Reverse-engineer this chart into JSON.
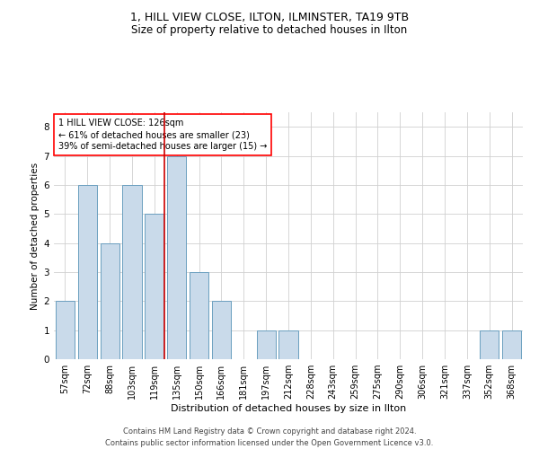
{
  "title1": "1, HILL VIEW CLOSE, ILTON, ILMINSTER, TA19 9TB",
  "title2": "Size of property relative to detached houses in Ilton",
  "xlabel": "Distribution of detached houses by size in Ilton",
  "ylabel": "Number of detached properties",
  "footer1": "Contains HM Land Registry data © Crown copyright and database right 2024.",
  "footer2": "Contains public sector information licensed under the Open Government Licence v3.0.",
  "annotation_line1": "1 HILL VIEW CLOSE: 126sqm",
  "annotation_line2": "← 61% of detached houses are smaller (23)",
  "annotation_line3": "39% of semi-detached houses are larger (15) →",
  "bar_labels": [
    "57sqm",
    "72sqm",
    "88sqm",
    "103sqm",
    "119sqm",
    "135sqm",
    "150sqm",
    "166sqm",
    "181sqm",
    "197sqm",
    "212sqm",
    "228sqm",
    "243sqm",
    "259sqm",
    "275sqm",
    "290sqm",
    "306sqm",
    "321sqm",
    "337sqm",
    "352sqm",
    "368sqm"
  ],
  "bar_values": [
    2,
    6,
    4,
    6,
    5,
    7,
    3,
    2,
    0,
    1,
    1,
    0,
    0,
    0,
    0,
    0,
    0,
    0,
    0,
    1,
    1
  ],
  "bar_color": "#c9daea",
  "bar_edge_color": "#6a9fbf",
  "grid_color": "#d0d0d0",
  "ylim": [
    0,
    8.5
  ],
  "yticks": [
    0,
    1,
    2,
    3,
    4,
    5,
    6,
    7,
    8
  ],
  "title1_fontsize": 9,
  "title2_fontsize": 8.5,
  "xlabel_fontsize": 8,
  "ylabel_fontsize": 7.5,
  "tick_fontsize": 7,
  "annotation_fontsize": 7,
  "footer_fontsize": 6,
  "red_line_color": "#cc0000",
  "background_color": "#ffffff"
}
